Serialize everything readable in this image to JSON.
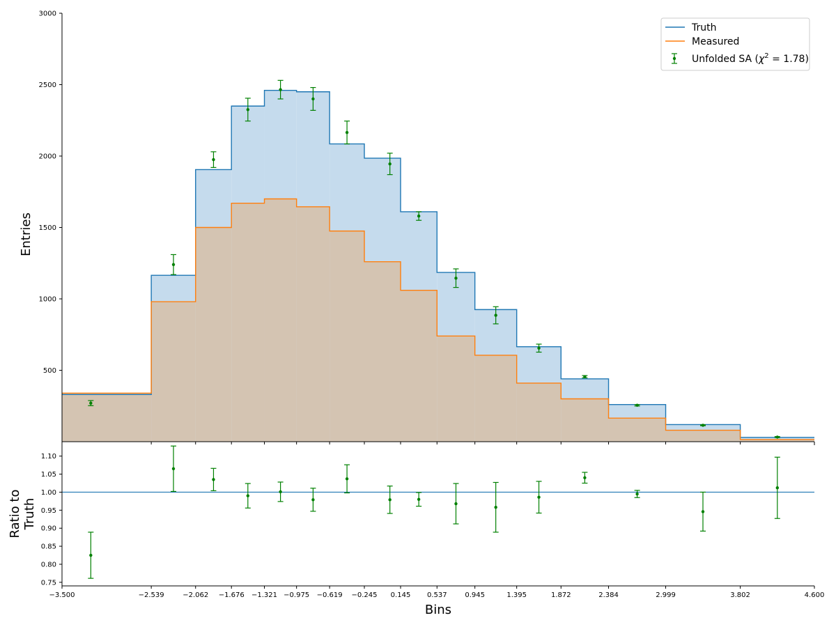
{
  "chart_data": [
    {
      "type": "histogram",
      "panel": "main",
      "xlabel": "",
      "ylabel": "Entries",
      "ylim": [
        0,
        3000
      ],
      "yticks": [
        500,
        1000,
        1500,
        2000,
        2500,
        3000
      ],
      "xlim": [
        -3.5,
        4.6
      ],
      "bin_edges": [
        -3.5,
        -2.539,
        -2.062,
        -1.676,
        -1.321,
        -0.975,
        -0.619,
        -0.245,
        0.145,
        0.537,
        0.945,
        1.395,
        1.872,
        2.384,
        2.999,
        3.802,
        4.6
      ],
      "series": [
        {
          "name": "Truth",
          "kind": "step-filled",
          "color": "#1f77b4",
          "fill": "#c5dbed",
          "values": [
            330,
            1165,
            1905,
            2350,
            2460,
            2450,
            2085,
            1985,
            1610,
            1185,
            925,
            665,
            440,
            260,
            120,
            30
          ]
        },
        {
          "name": "Measured",
          "kind": "step-filled",
          "color": "#ff7f0e",
          "fill": "#d4c4b2",
          "values": [
            340,
            980,
            1500,
            1670,
            1700,
            1645,
            1475,
            1260,
            1060,
            740,
            605,
            410,
            300,
            165,
            80,
            15
          ]
        },
        {
          "name": "Unfolded SA ($\\chi^2 = 1.78$)",
          "name_parts": [
            "Unfolded SA (",
            "χ",
            "2",
            " = 1.78)"
          ],
          "kind": "errorbar",
          "color": "#008000",
          "x": [
            -3.19,
            -2.3,
            -1.869,
            -1.499,
            -1.148,
            -0.797,
            -0.432,
            0.03,
            0.341,
            0.741,
            1.17,
            1.634,
            2.128,
            2.692,
            3.4,
            4.201
          ],
          "values": [
            270,
            1240,
            1975,
            2325,
            2465,
            2400,
            2165,
            1945,
            1580,
            1145,
            885,
            655,
            455,
            255,
            115,
            32
          ],
          "yerr": [
            18,
            70,
            55,
            80,
            65,
            80,
            80,
            75,
            30,
            65,
            60,
            28,
            8,
            5,
            3,
            4
          ]
        }
      ],
      "legend": {
        "location": "upper right",
        "entries": [
          "Truth",
          "Measured",
          "Unfolded SA ($\\chi^2 = 1.78$)"
        ]
      }
    },
    {
      "type": "errorbar",
      "panel": "ratio",
      "xlabel": "Bins",
      "ylabel": "Ratio to Truth",
      "ylabel_lines": [
        "Ratio to",
        "Truth"
      ],
      "ylim": [
        0.74,
        1.14
      ],
      "yticks": [
        0.75,
        0.8,
        0.85,
        0.9,
        0.95,
        1.0,
        1.05,
        1.1
      ],
      "xticks": [
        -3.5,
        -2.539,
        -2.062,
        -1.676,
        -1.321,
        -0.975,
        -0.619,
        -0.245,
        0.145,
        0.537,
        0.945,
        1.395,
        1.872,
        2.384,
        2.999,
        3.802,
        4.6
      ],
      "xtick_labels": [
        "−3.500",
        "−2.539",
        "−2.062",
        "−1.676",
        "−1.321",
        "−0.975",
        "−0.619",
        "−0.245",
        "0.145",
        "0.537",
        "0.945",
        "1.395",
        "1.872",
        "2.384",
        "2.999",
        "3.802",
        "4.600"
      ],
      "reference_line": 1.0,
      "reference_color": "#1f77b4",
      "color": "#008000",
      "x": [
        -3.19,
        -2.3,
        -1.869,
        -1.499,
        -1.148,
        -0.797,
        -0.432,
        0.03,
        0.341,
        0.741,
        1.17,
        1.634,
        2.128,
        2.692,
        3.4,
        4.201
      ],
      "values": [
        0.825,
        1.065,
        1.035,
        0.99,
        1.001,
        0.979,
        1.037,
        0.979,
        0.98,
        0.968,
        0.958,
        0.986,
        1.04,
        0.995,
        0.946,
        1.012
      ],
      "yerr": [
        0.064,
        0.063,
        0.031,
        0.034,
        0.027,
        0.032,
        0.039,
        0.038,
        0.019,
        0.056,
        0.069,
        0.044,
        0.015,
        0.01,
        0.054,
        0.085
      ]
    }
  ]
}
